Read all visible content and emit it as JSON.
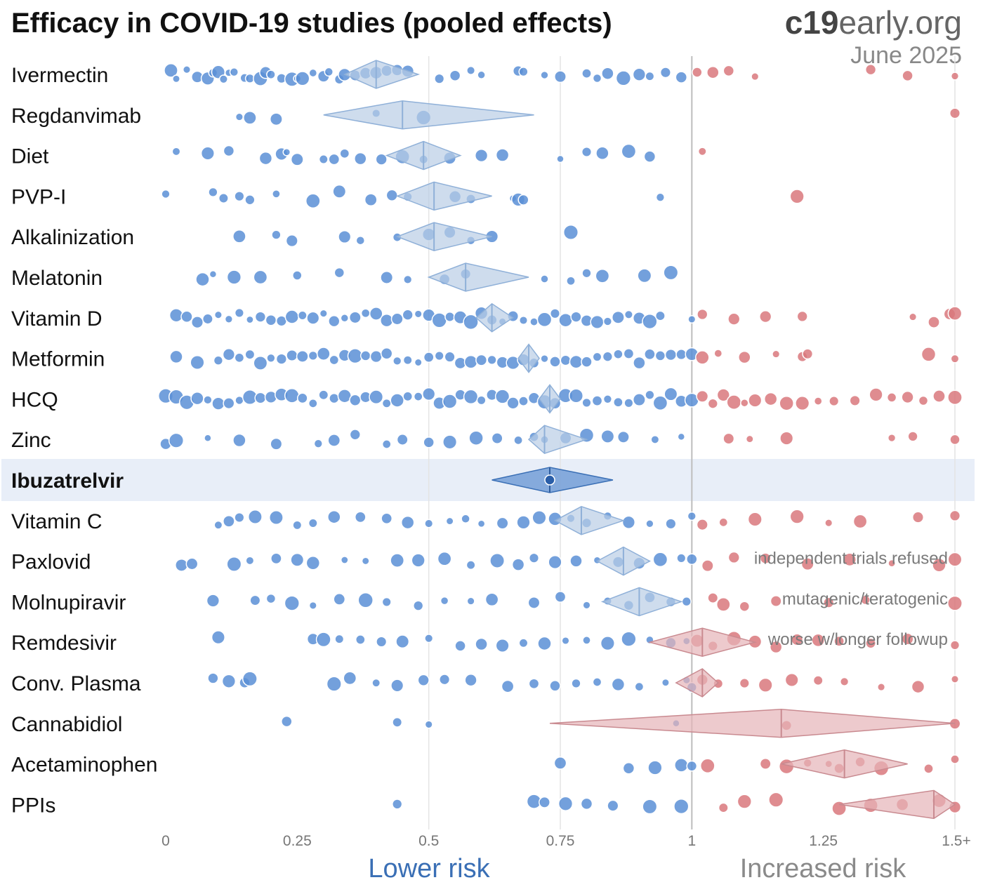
{
  "title": "Efficacy in COVID-19 studies (pooled effects)",
  "brand": {
    "bold": "c19",
    "rest": "early.org",
    "date": "June 2025"
  },
  "axis": {
    "ticks": [
      "0",
      "0.25",
      "0.5",
      "0.75",
      "1",
      "1.25",
      "1.5+"
    ],
    "lower_label": "Lower risk",
    "increased_label": "Increased risk"
  },
  "colors": {
    "benefit": "#5b8fd6",
    "harm": "#d9787c",
    "diamond_benefit": "#b9cde6",
    "diamond_harm": "#e6b3b8",
    "highlight_row": "#e8eef8",
    "highlight_diamond": "#7aa2d8"
  },
  "chart_data": {
    "type": "scatter",
    "title": "Efficacy in COVID-19 studies (pooled effects)",
    "xlim": [
      0,
      1.5
    ],
    "x_ticks": [
      "0",
      "0.25",
      "0.5",
      "0.75",
      "1",
      "1.25",
      "1.5+"
    ],
    "reference_line": 1,
    "rows": [
      {
        "name": "Ivermectin",
        "pooled": 0.4,
        "ci": [
          0.34,
          0.48
        ],
        "studies": [
          0.01,
          0.02,
          0.04,
          0.06,
          0.08,
          0.09,
          0.1,
          0.11,
          0.12,
          0.13,
          0.15,
          0.16,
          0.18,
          0.19,
          0.2,
          0.22,
          0.24,
          0.25,
          0.26,
          0.28,
          0.3,
          0.31,
          0.33,
          0.34,
          0.36,
          0.38,
          0.4,
          0.42,
          0.44,
          0.46,
          0.52,
          0.55,
          0.58,
          0.6,
          0.67,
          0.68,
          0.72,
          0.75,
          0.8,
          0.82,
          0.84,
          0.87,
          0.9,
          0.92,
          0.95,
          0.98,
          1.01,
          1.04,
          1.07,
          1.12,
          1.34,
          1.41,
          1.5
        ]
      },
      {
        "name": "Regdanvimab",
        "pooled": 0.45,
        "ci": [
          0.3,
          0.7
        ],
        "studies": [
          0.14,
          0.16,
          0.21,
          0.4,
          0.49,
          1.5
        ]
      },
      {
        "name": "Diet",
        "pooled": 0.49,
        "ci": [
          0.42,
          0.56
        ],
        "studies": [
          0.02,
          0.08,
          0.12,
          0.19,
          0.22,
          0.23,
          0.25,
          0.3,
          0.32,
          0.34,
          0.37,
          0.41,
          0.45,
          0.49,
          0.54,
          0.6,
          0.64,
          0.75,
          0.8,
          0.83,
          0.88,
          0.92,
          1.02
        ]
      },
      {
        "name": "PVP-I",
        "pooled": 0.51,
        "ci": [
          0.44,
          0.62
        ],
        "studies": [
          0.0,
          0.09,
          0.11,
          0.14,
          0.16,
          0.21,
          0.28,
          0.33,
          0.39,
          0.43,
          0.46,
          0.55,
          0.58,
          0.66,
          0.67,
          0.68,
          0.94,
          1.2
        ]
      },
      {
        "name": "Alkalinization",
        "pooled": 0.51,
        "ci": [
          0.44,
          0.62
        ],
        "studies": [
          0.14,
          0.21,
          0.24,
          0.34,
          0.37,
          0.44,
          0.5,
          0.54,
          0.58,
          0.62,
          0.77
        ]
      },
      {
        "name": "Melatonin",
        "pooled": 0.57,
        "ci": [
          0.5,
          0.69
        ],
        "studies": [
          0.07,
          0.09,
          0.13,
          0.18,
          0.25,
          0.33,
          0.42,
          0.46,
          0.53,
          0.57,
          0.72,
          0.77,
          0.8,
          0.83,
          0.91,
          0.96
        ]
      },
      {
        "name": "Vitamin D",
        "pooled": 0.62,
        "ci": [
          0.59,
          0.66
        ],
        "studies": [
          0.02,
          0.04,
          0.06,
          0.08,
          0.1,
          0.12,
          0.14,
          0.16,
          0.18,
          0.2,
          0.22,
          0.24,
          0.26,
          0.28,
          0.3,
          0.32,
          0.34,
          0.36,
          0.38,
          0.4,
          0.42,
          0.44,
          0.46,
          0.48,
          0.5,
          0.52,
          0.54,
          0.56,
          0.58,
          0.6,
          0.62,
          0.64,
          0.66,
          0.68,
          0.7,
          0.72,
          0.74,
          0.76,
          0.78,
          0.8,
          0.82,
          0.84,
          0.86,
          0.88,
          0.9,
          0.92,
          0.94,
          1.0,
          1.02,
          1.08,
          1.14,
          1.21,
          1.42,
          1.46,
          1.49,
          1.5
        ]
      },
      {
        "name": "Metformin",
        "pooled": 0.69,
        "ci": [
          0.67,
          0.71
        ],
        "studies": [
          0.02,
          0.06,
          0.1,
          0.12,
          0.14,
          0.16,
          0.18,
          0.2,
          0.22,
          0.24,
          0.26,
          0.28,
          0.3,
          0.32,
          0.34,
          0.36,
          0.38,
          0.4,
          0.42,
          0.44,
          0.46,
          0.48,
          0.5,
          0.52,
          0.54,
          0.56,
          0.58,
          0.6,
          0.62,
          0.64,
          0.66,
          0.68,
          0.7,
          0.72,
          0.74,
          0.76,
          0.78,
          0.8,
          0.82,
          0.84,
          0.86,
          0.88,
          0.9,
          0.92,
          0.94,
          0.96,
          0.98,
          1.0,
          1.02,
          1.05,
          1.1,
          1.16,
          1.21,
          1.22,
          1.45,
          1.5
        ]
      },
      {
        "name": "HCQ",
        "pooled": 0.73,
        "ci": [
          0.71,
          0.75
        ],
        "studies": [
          0.0,
          0.02,
          0.04,
          0.06,
          0.08,
          0.1,
          0.12,
          0.14,
          0.16,
          0.18,
          0.2,
          0.22,
          0.24,
          0.26,
          0.28,
          0.3,
          0.32,
          0.34,
          0.36,
          0.38,
          0.4,
          0.42,
          0.44,
          0.46,
          0.48,
          0.5,
          0.52,
          0.54,
          0.56,
          0.58,
          0.6,
          0.62,
          0.64,
          0.66,
          0.68,
          0.7,
          0.72,
          0.74,
          0.76,
          0.78,
          0.8,
          0.82,
          0.84,
          0.86,
          0.88,
          0.9,
          0.92,
          0.94,
          0.96,
          0.98,
          1.0,
          1.02,
          1.04,
          1.06,
          1.08,
          1.1,
          1.12,
          1.15,
          1.18,
          1.21,
          1.24,
          1.27,
          1.31,
          1.35,
          1.38,
          1.41,
          1.44,
          1.47,
          1.5
        ]
      },
      {
        "name": "Zinc",
        "pooled": 0.72,
        "ci": [
          0.69,
          0.8
        ],
        "studies": [
          0.0,
          0.02,
          0.08,
          0.14,
          0.21,
          0.29,
          0.32,
          0.36,
          0.42,
          0.45,
          0.5,
          0.54,
          0.59,
          0.63,
          0.67,
          0.7,
          0.72,
          0.76,
          0.8,
          0.84,
          0.87,
          0.93,
          0.98,
          1.07,
          1.11,
          1.18,
          1.38,
          1.42,
          1.5
        ]
      },
      {
        "name": "Ibuzatrelvir",
        "pooled": 0.73,
        "ci": [
          0.62,
          0.85
        ],
        "studies": [
          0.73
        ],
        "highlight": true
      },
      {
        "name": "Vitamin C",
        "pooled": 0.79,
        "ci": [
          0.74,
          0.87
        ],
        "studies": [
          0.1,
          0.12,
          0.14,
          0.17,
          0.21,
          0.25,
          0.28,
          0.32,
          0.37,
          0.42,
          0.46,
          0.5,
          0.54,
          0.57,
          0.6,
          0.64,
          0.68,
          0.71,
          0.74,
          0.77,
          0.8,
          0.84,
          0.88,
          0.92,
          0.96,
          1.0,
          1.02,
          1.06,
          1.12,
          1.2,
          1.26,
          1.32,
          1.43,
          1.5
        ]
      },
      {
        "name": "Paxlovid",
        "pooled": 0.87,
        "ci": [
          0.82,
          0.92
        ],
        "studies": [
          0.03,
          0.05,
          0.13,
          0.16,
          0.21,
          0.25,
          0.28,
          0.34,
          0.38,
          0.44,
          0.48,
          0.53,
          0.58,
          0.63,
          0.67,
          0.7,
          0.74,
          0.78,
          0.82,
          0.86,
          0.9,
          0.94,
          0.98,
          1.0,
          1.03,
          1.08,
          1.14,
          1.22,
          1.3,
          1.38,
          1.47,
          1.5
        ]
      },
      {
        "name": "Molnupiravir",
        "pooled": 0.9,
        "ci": [
          0.83,
          0.98
        ],
        "studies": [
          0.09,
          0.17,
          0.2,
          0.24,
          0.28,
          0.33,
          0.38,
          0.42,
          0.48,
          0.53,
          0.58,
          0.62,
          0.7,
          0.75,
          0.8,
          0.84,
          0.88,
          0.92,
          0.96,
          0.99,
          1.04,
          1.06,
          1.1,
          1.16,
          1.26,
          1.33,
          1.5
        ]
      },
      {
        "name": "Remdesivir",
        "pooled": 1.02,
        "ci": [
          0.92,
          1.12
        ],
        "studies": [
          0.1,
          0.28,
          0.3,
          0.33,
          0.37,
          0.41,
          0.45,
          0.5,
          0.56,
          0.6,
          0.64,
          0.68,
          0.72,
          0.76,
          0.8,
          0.84,
          0.88,
          0.92,
          0.96,
          0.99,
          1.01,
          1.04,
          1.08,
          1.12,
          1.16,
          1.2,
          1.24,
          1.28,
          1.34,
          1.41,
          1.5
        ]
      },
      {
        "name": "Conv. Plasma",
        "pooled": 1.02,
        "ci": [
          0.97,
          1.05
        ],
        "studies": [
          0.09,
          0.12,
          0.15,
          0.16,
          0.32,
          0.35,
          0.4,
          0.44,
          0.49,
          0.53,
          0.58,
          0.65,
          0.7,
          0.74,
          0.78,
          0.82,
          0.86,
          0.9,
          0.95,
          0.99,
          1.0,
          1.02,
          1.05,
          1.1,
          1.14,
          1.19,
          1.24,
          1.29,
          1.36,
          1.43,
          1.5
        ]
      },
      {
        "name": "Cannabidiol",
        "pooled": 1.17,
        "ci": [
          0.73,
          1.5
        ],
        "studies": [
          0.23,
          0.44,
          0.5,
          0.97,
          1.18,
          1.5
        ]
      },
      {
        "name": "Acetaminophen",
        "pooled": 1.29,
        "ci": [
          1.17,
          1.41
        ],
        "studies": [
          0.75,
          0.88,
          0.93,
          0.98,
          1.0,
          1.03,
          1.14,
          1.18,
          1.22,
          1.26,
          1.28,
          1.32,
          1.36,
          1.45,
          1.5
        ]
      },
      {
        "name": "PPIs",
        "pooled": 1.46,
        "ci": [
          1.28,
          1.5
        ],
        "studies": [
          0.44,
          0.7,
          0.72,
          0.76,
          0.8,
          0.85,
          0.92,
          0.98,
          1.06,
          1.1,
          1.16,
          1.28,
          1.34,
          1.4,
          1.47,
          1.5
        ]
      }
    ],
    "annotations": [
      {
        "row": "Paxlovid",
        "text": "independent trials refused"
      },
      {
        "row": "Molnupiravir",
        "text": "mutagenic/teratogenic"
      },
      {
        "row": "Remdesivir",
        "text": "worse w/longer followup"
      }
    ]
  }
}
